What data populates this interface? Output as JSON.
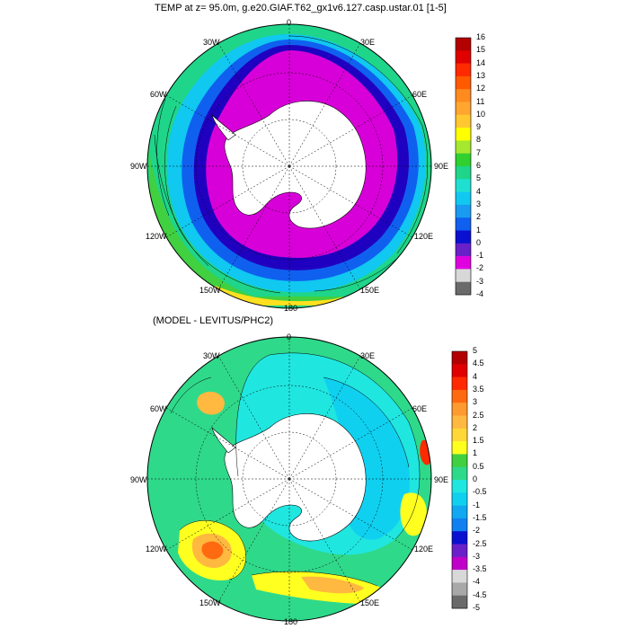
{
  "panels": [
    {
      "id": "top",
      "title": "TEMP at z=  95.0m, g.e20.GIAF.T62_gx1v6.127.casp.ustar.01 [1-5]",
      "longitude_labels": [
        "0",
        "30E",
        "60E",
        "90E",
        "120E",
        "150E",
        "180",
        "150W",
        "120W",
        "90W",
        "60W",
        "30W"
      ],
      "colorbar": {
        "labels": [
          "16",
          "15",
          "14",
          "13",
          "12",
          "11",
          "10",
          "9",
          "8",
          "7",
          "6",
          "5",
          "4",
          "3",
          "2",
          "1",
          "0",
          "-1",
          "-2",
          "-3",
          "-4"
        ],
        "colors": [
          "#b30000",
          "#e00000",
          "#ff2a00",
          "#ff5a00",
          "#ff8a1e",
          "#ffa630",
          "#ffc830",
          "#ffff00",
          "#a6e830",
          "#2fd030",
          "#1fd58a",
          "#1fe0d0",
          "#10c8f0",
          "#1a9af0",
          "#1060f0",
          "#0a10d0",
          "#6a20c8",
          "#e000e0",
          "#d8d8d8",
          "#6a6a6a"
        ]
      },
      "field_colors": {
        "ice": "#d800d8",
        "deep": "#2000c0",
        "cold": "#1060f0",
        "mid": "#10c8f0",
        "warm": "#1fd58a",
        "green": "#40d040",
        "hot": "#ffe020"
      }
    },
    {
      "id": "bottom",
      "title": "(MODEL - LEVITUS/PHC2)",
      "longitude_labels": [
        "0",
        "30E",
        "60E",
        "90E",
        "120E",
        "150E",
        "180",
        "150W",
        "120W",
        "90W",
        "60W",
        "30W"
      ],
      "colorbar": {
        "labels": [
          "5",
          "4.5",
          "4",
          "3.5",
          "3",
          "2.5",
          "2",
          "1.5",
          "1",
          "0.5",
          "0",
          "-0.5",
          "-1",
          "-1.5",
          "-2",
          "-2.5",
          "-3",
          "-3.5",
          "-4",
          "-4.5",
          "-5"
        ],
        "colors": [
          "#b30000",
          "#e00000",
          "#ff2a00",
          "#ff6a10",
          "#ff9a30",
          "#ffb840",
          "#ffd838",
          "#ffff20",
          "#40d040",
          "#2fd98a",
          "#20e6e0",
          "#10d0f0",
          "#10a8f0",
          "#1080f0",
          "#0a10d0",
          "#6a20c8",
          "#c000c8",
          "#d8d8d8",
          "#a8a8a8",
          "#6a6a6a"
        ]
      },
      "field_colors": {
        "base": "#2fd98a",
        "cyan": "#20e6e0",
        "lightblue": "#10d0f0",
        "yellow": "#ffff20",
        "orange": "#ffb840",
        "red": "#ff6a10",
        "green": "#40d040"
      }
    }
  ]
}
